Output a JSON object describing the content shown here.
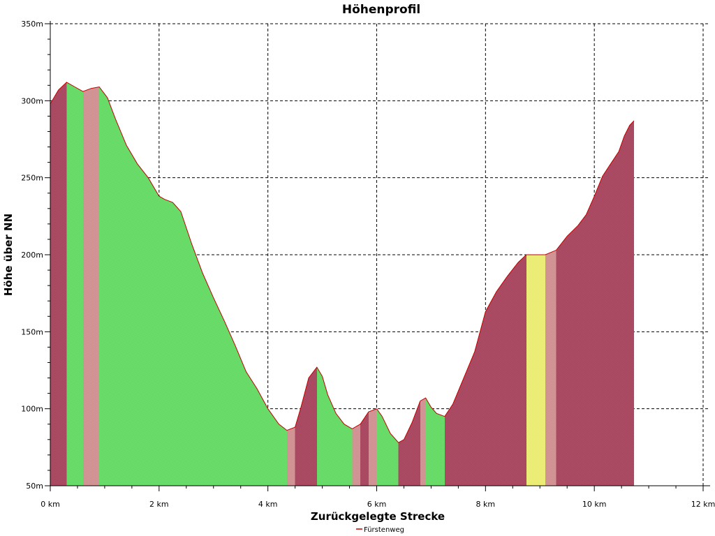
{
  "chart_data": {
    "type": "area",
    "title": "Höhenprofil",
    "xlabel": "Zurückgelegte Strecke",
    "ylabel": "Höhe über NN",
    "xlim": [
      0,
      12
    ],
    "ylim": [
      50,
      350
    ],
    "grid": true,
    "legend_position": "bottom-center",
    "x_ticks": [
      {
        "value": 0,
        "label": "0 km"
      },
      {
        "value": 2,
        "label": "2 km"
      },
      {
        "value": 4,
        "label": "4 km"
      },
      {
        "value": 6,
        "label": "6 km"
      },
      {
        "value": 8,
        "label": "8 km"
      },
      {
        "value": 10,
        "label": "10 km"
      },
      {
        "value": 12,
        "label": "12 km"
      }
    ],
    "y_ticks": [
      {
        "value": 50,
        "label": "50m"
      },
      {
        "value": 100,
        "label": "100m"
      },
      {
        "value": 150,
        "label": "150m"
      },
      {
        "value": 200,
        "label": "200m"
      },
      {
        "value": 250,
        "label": "250m"
      },
      {
        "value": 300,
        "label": "300m"
      },
      {
        "value": 350,
        "label": "350m"
      }
    ],
    "series": [
      {
        "name": "Fürstenweg",
        "line_color": "#c00000",
        "x": [
          0,
          0.15,
          0.3,
          0.45,
          0.6,
          0.75,
          0.9,
          1.05,
          1.2,
          1.4,
          1.6,
          1.8,
          2.0,
          2.1,
          2.25,
          2.4,
          2.6,
          2.8,
          3.0,
          3.2,
          3.4,
          3.6,
          3.8,
          4.0,
          4.2,
          4.35,
          4.5,
          4.6,
          4.75,
          4.9,
          5.0,
          5.1,
          5.25,
          5.4,
          5.55,
          5.7,
          5.85,
          6.0,
          6.1,
          6.25,
          6.4,
          6.5,
          6.65,
          6.8,
          6.9,
          7.0,
          7.1,
          7.25,
          7.4,
          7.6,
          7.8,
          8.0,
          8.2,
          8.4,
          8.6,
          8.75,
          8.9,
          9.1,
          9.3,
          9.5,
          9.7,
          9.85,
          10.0,
          10.15,
          10.3,
          10.45,
          10.55,
          10.65,
          10.73
        ],
        "y": [
          298,
          307,
          312,
          309,
          306,
          308,
          309,
          302,
          288,
          271,
          259,
          250,
          238,
          236,
          234,
          228,
          207,
          188,
          172,
          157,
          141,
          124,
          113,
          100,
          90,
          86,
          88,
          100,
          120,
          127,
          121,
          109,
          97,
          90,
          87,
          90,
          98,
          100,
          95,
          84,
          78,
          80,
          91,
          105,
          107,
          101,
          97,
          95,
          103,
          120,
          137,
          163,
          176,
          186,
          195,
          200,
          200,
          200,
          203,
          212,
          219,
          226,
          238,
          251,
          259,
          267,
          277,
          284,
          287
        ]
      }
    ]
  }
}
